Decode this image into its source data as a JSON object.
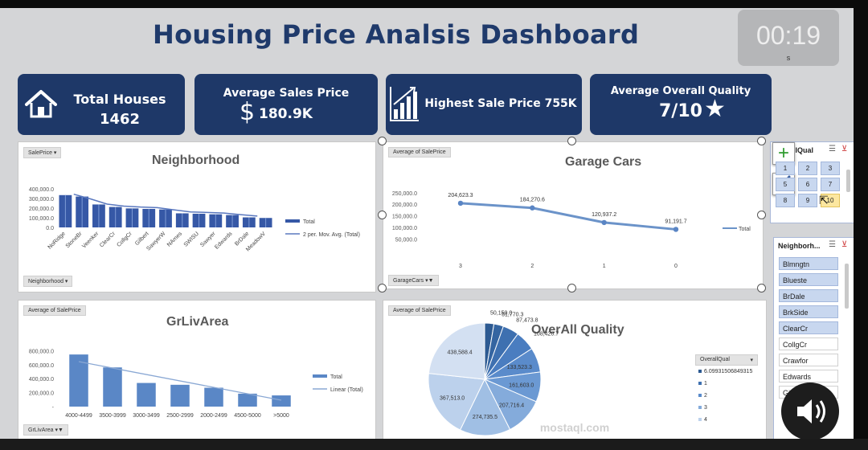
{
  "dashboard": {
    "title": "Housing Price Analsis Dashboard"
  },
  "timer": {
    "value": "00:19",
    "unit": "s"
  },
  "kpis": {
    "total_houses_label": "Total Houses",
    "total_houses_value": "1462",
    "avg_price_label": "Average Sales Price",
    "avg_price_value": "180.9K",
    "highest_price_label": "Highest Sale Price 755K",
    "avg_quality_label": "Average Overall Quality",
    "avg_quality_value": "7/10"
  },
  "neighborhood_chart": {
    "field_button": "SalePrice",
    "axis_button": "Neighborhood",
    "chart_data": {
      "type": "bar",
      "title": "Neighborhood",
      "categories": [
        "NoRidge",
        "StoneBr",
        "Veenker",
        "ClearCr",
        "CollgCr",
        "Gilbert",
        "SawyerW",
        "NAmes",
        "SWISU",
        "Sawyer",
        "Edwards",
        "BrDale",
        "MeadowV"
      ],
      "values": [
        335000,
        320000,
        238000,
        212000,
        197000,
        192000,
        186000,
        146000,
        142000,
        136000,
        128000,
        104000,
        98000
      ],
      "series": [
        {
          "name": "Total"
        },
        {
          "name": "2 per. Mov. Avg. (Total)"
        }
      ],
      "yticks": [
        "400,000.0",
        "300,000.0",
        "200,000.0",
        "100,000.0",
        "0.0"
      ],
      "ylim": [
        0,
        400000
      ]
    }
  },
  "garage_chart": {
    "field_button": "Average of SalePrice",
    "axis_button": "GarageCars",
    "chart_data": {
      "type": "line",
      "title": "Garage Cars",
      "categories": [
        "3",
        "2",
        "1",
        "0"
      ],
      "values": [
        204623.3,
        184270.6,
        120937.2,
        91191.7
      ],
      "labels": [
        "204,623.3",
        "184,270.6",
        "120,937.2",
        "91,191.7"
      ],
      "series": [
        {
          "name": "Total"
        }
      ],
      "yticks": [
        "250,000.0",
        "200,000.0",
        "150,000.0",
        "100,000.0",
        "50,000.0"
      ],
      "ylim": [
        30000,
        260000
      ]
    }
  },
  "grlivarea_chart": {
    "field_button": "Average of SalePrice",
    "axis_button": "GrLivArea",
    "chart_data": {
      "type": "bar",
      "title": "GrLivArea",
      "categories": [
        "4000-4499",
        "3500-3999",
        "3000-3499",
        "2500-2999",
        "2000-2499",
        "4500-5000",
        ">5000"
      ],
      "values": [
        745000,
        560000,
        338000,
        312000,
        270000,
        185000,
        160000
      ],
      "series": [
        {
          "name": "Total"
        },
        {
          "name": "Linear (Total)"
        }
      ],
      "yticks": [
        "800,000.0",
        "600,000.0",
        "400,000.0",
        "200,000.0",
        "-"
      ],
      "ylim": [
        0,
        850000
      ]
    }
  },
  "quality_chart": {
    "field_button": "Average of SalePrice",
    "legend_field": "OverallQual",
    "chart_data": {
      "type": "pie",
      "title": "OverAll Quality",
      "values": [
        50150.0,
        51770.3,
        87473.8,
        108420.7,
        133523.3,
        161603.0,
        207716.4,
        274735.5,
        367513.0,
        438588.4
      ],
      "labels": [
        "50,150.0",
        "51,770.3",
        "87,473.8",
        "108,420.7",
        "133,523.3",
        "161,603.0",
        "207,716.4",
        "274,735.5",
        "367,513.0",
        "438,588.4"
      ],
      "colors": [
        "#2d5a92",
        "#3565a1",
        "#3e70b0",
        "#4a7dc0",
        "#5a8bcb",
        "#6b99d3",
        "#84abdb",
        "#a0bfe4",
        "#bcd1ec",
        "#d3e0f2"
      ],
      "legend": [
        "6.09931506849315",
        "1",
        "2",
        "3",
        "4"
      ]
    }
  },
  "overallqual_slicer": {
    "title": "llQual",
    "items": [
      "1",
      "2",
      "3",
      "5",
      "6",
      "7",
      "8",
      "9",
      "10"
    ]
  },
  "neighborhood_slicer": {
    "title": "Neighborh...",
    "items": [
      "Blmngtn",
      "Blueste",
      "BrDale",
      "BrkSide",
      "ClearCr",
      "CollgCr",
      "Crawfor",
      "Edwards",
      "Gilbert"
    ]
  },
  "watermark": {
    "text": "mostaql.com"
  }
}
